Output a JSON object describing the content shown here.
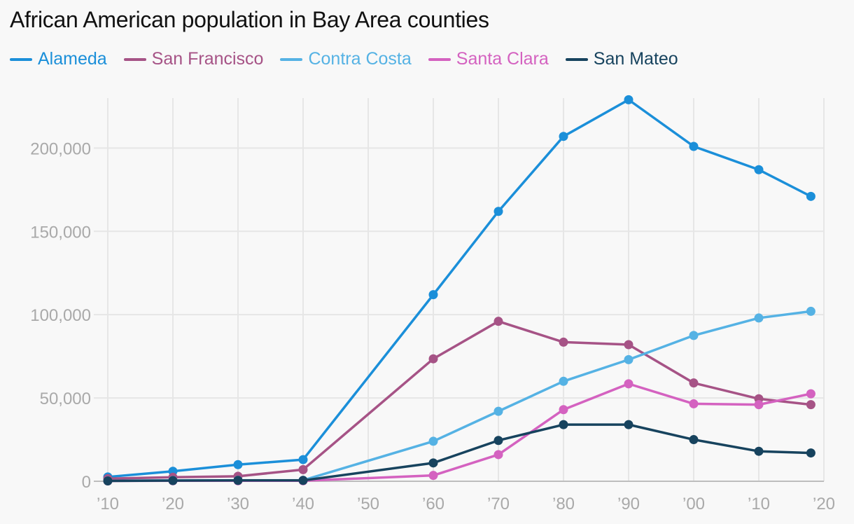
{
  "chart_data": {
    "type": "line",
    "title": "African American population in Bay Area counties",
    "xlabel": "",
    "ylabel": "",
    "x": [
      1910,
      1920,
      1930,
      1940,
      1960,
      1970,
      1980,
      1990,
      2000,
      2010,
      2018
    ],
    "x_ticks": [
      1910,
      1920,
      1930,
      1940,
      1950,
      1960,
      1970,
      1980,
      1990,
      2000,
      2010,
      2020
    ],
    "x_tick_labels": [
      "’10",
      "’20",
      "’30",
      "’40",
      "’50",
      "’60",
      "’70",
      "’80",
      "’90",
      "’00",
      "’10",
      "’20"
    ],
    "xlim": [
      1910,
      2020
    ],
    "ylim": [
      0,
      230000
    ],
    "y_ticks": [
      0,
      50000,
      100000,
      150000,
      200000
    ],
    "y_tick_labels": [
      "0",
      "50,000",
      "100,000",
      "150,000",
      "200,000"
    ],
    "grid": true,
    "legend_position": "top-left",
    "series": [
      {
        "name": "Alameda",
        "color": "#1b8fd9",
        "values": [
          2600,
          6000,
          10000,
          13000,
          112000,
          162000,
          207000,
          229000,
          201000,
          187000,
          171000
        ]
      },
      {
        "name": "San Francisco",
        "color": "#a65386",
        "values": [
          1600,
          2400,
          3000,
          7000,
          73500,
          96000,
          83500,
          82000,
          59000,
          49500,
          46000
        ]
      },
      {
        "name": "Contra Costa",
        "color": "#55b2e4",
        "values": [
          300,
          500,
          600,
          600,
          24000,
          42000,
          60000,
          73000,
          87500,
          98000,
          102000
        ]
      },
      {
        "name": "Santa Clara",
        "color": "#d462c0",
        "values": [
          200,
          300,
          300,
          300,
          3500,
          16000,
          43000,
          58500,
          46500,
          46000,
          52500
        ]
      },
      {
        "name": "San Mateo",
        "color": "#17435e",
        "values": [
          200,
          400,
          500,
          500,
          11000,
          24500,
          34000,
          34000,
          25000,
          18000,
          17000
        ]
      }
    ]
  }
}
